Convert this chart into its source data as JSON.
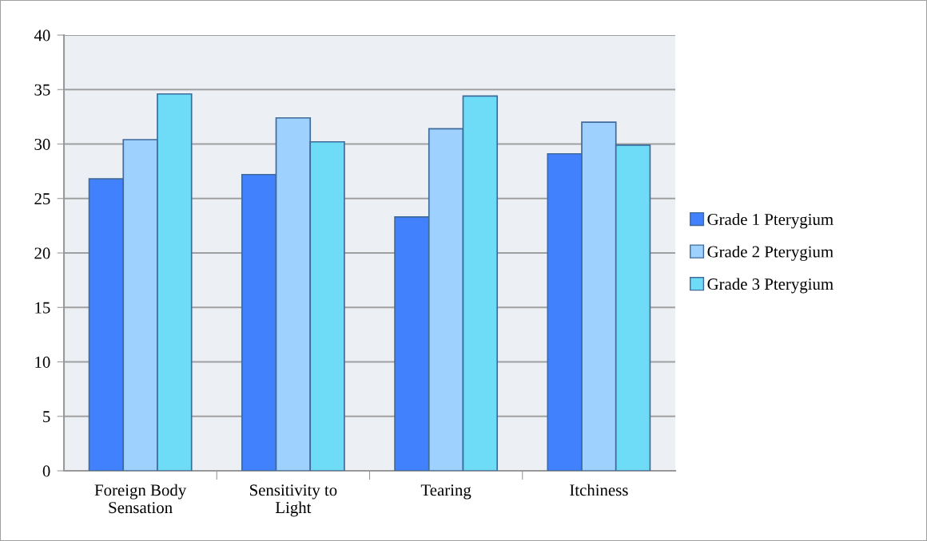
{
  "chart_data": {
    "type": "bar",
    "categories": [
      "Foreign Body\nSensation",
      "Sensitivity to\nLight",
      "Tearing",
      "Itchiness"
    ],
    "series": [
      {
        "name": "Grade 1 Pterygium",
        "color": "#4181fe",
        "values": [
          26.8,
          27.2,
          23.3,
          29.1
        ]
      },
      {
        "name": "Grade 2 Pterygium",
        "color": "#9fd1fe",
        "values": [
          30.4,
          32.4,
          31.4,
          32.0
        ]
      },
      {
        "name": "Grade 3 Pterygium",
        "color": "#6edcf7",
        "values": [
          34.6,
          30.2,
          34.4,
          29.9
        ]
      }
    ],
    "ylim": [
      0,
      40
    ],
    "yticks": [
      0,
      5,
      10,
      15,
      20,
      25,
      30,
      35,
      40
    ],
    "grid": "y",
    "legend": "right"
  }
}
